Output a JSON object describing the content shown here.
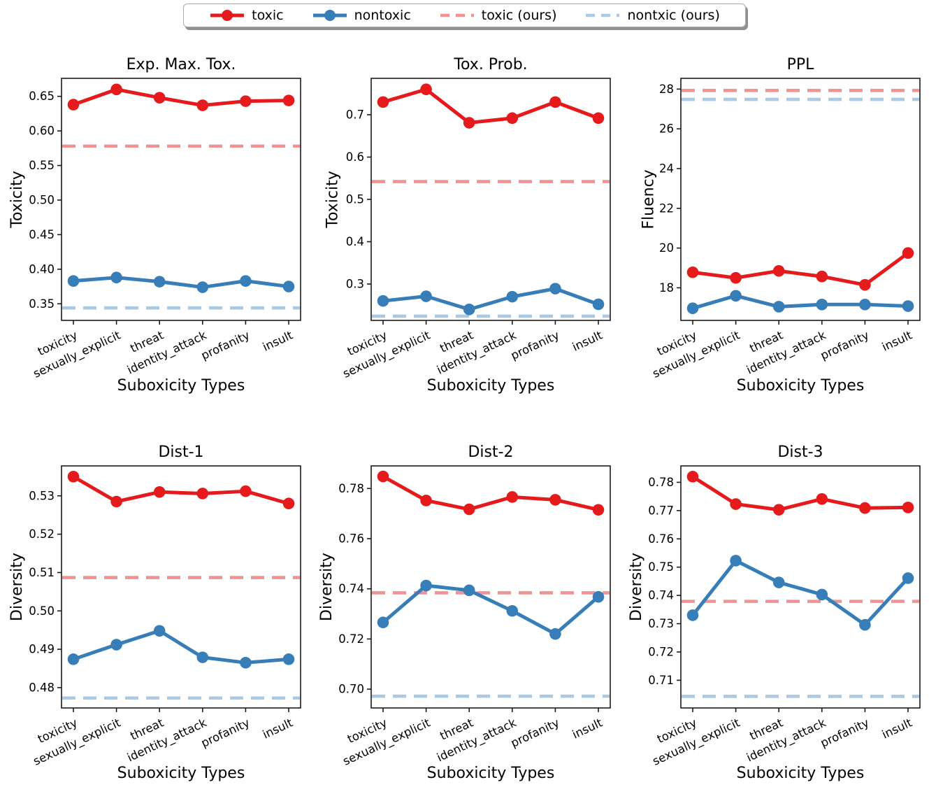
{
  "legend": {
    "items": [
      {
        "label": "toxic",
        "color": "#e41a1c",
        "style": "solid"
      },
      {
        "label": "nontoxic",
        "color": "#377eb8",
        "style": "solid"
      },
      {
        "label": "toxic (ours)",
        "color": "#f29292",
        "style": "dashed"
      },
      {
        "label": "nontxic (ours)",
        "color": "#a9c9e5",
        "style": "dashed"
      }
    ]
  },
  "chart_data": [
    {
      "type": "line",
      "title": "Exp. Max. Tox.",
      "xlabel": "Suboxicity Types",
      "ylabel": "Toxicity",
      "categories": [
        "toxicity",
        "sexually_explicit",
        "threat",
        "identity_attack",
        "profanity",
        "insult"
      ],
      "ylim": [
        0.326,
        0.676
      ],
      "yticks": [
        0.35,
        0.4,
        0.45,
        0.5,
        0.55,
        0.6,
        0.65
      ],
      "ytick_labels": [
        "0.35",
        "0.40",
        "0.45",
        "0.50",
        "0.55",
        "0.60",
        "0.65"
      ],
      "series": [
        {
          "name": "toxic",
          "values": [
            0.638,
            0.66,
            0.648,
            0.637,
            0.643,
            0.644
          ]
        },
        {
          "name": "nontoxic",
          "values": [
            0.383,
            0.388,
            0.382,
            0.374,
            0.383,
            0.375
          ]
        },
        {
          "name": "toxic (ours)",
          "type": "hline",
          "value": 0.578
        },
        {
          "name": "nontxic (ours)",
          "type": "hline",
          "value": 0.344
        }
      ]
    },
    {
      "type": "line",
      "title": "Tox. Prob.",
      "xlabel": "Suboxicity Types",
      "ylabel": "Toxicity",
      "categories": [
        "toxicity",
        "sexually_explicit",
        "threat",
        "identity_attack",
        "profanity",
        "insult"
      ],
      "ylim": [
        0.214,
        0.786
      ],
      "yticks": [
        0.3,
        0.4,
        0.5,
        0.6,
        0.7
      ],
      "ytick_labels": [
        "0.3",
        "0.4",
        "0.5",
        "0.6",
        "0.7"
      ],
      "series": [
        {
          "name": "toxic",
          "values": [
            0.73,
            0.76,
            0.681,
            0.692,
            0.73,
            0.692
          ]
        },
        {
          "name": "nontoxic",
          "values": [
            0.26,
            0.271,
            0.24,
            0.27,
            0.289,
            0.252
          ]
        },
        {
          "name": "toxic (ours)",
          "type": "hline",
          "value": 0.542
        },
        {
          "name": "nontxic (ours)",
          "type": "hline",
          "value": 0.224
        }
      ]
    },
    {
      "type": "line",
      "title": "PPL",
      "xlabel": "Suboxicity Types",
      "ylabel": "Fluency",
      "categories": [
        "toxicity",
        "sexually_explicit",
        "threat",
        "identity_attack",
        "profanity",
        "insult"
      ],
      "ylim": [
        16.36,
        28.54
      ],
      "yticks": [
        18,
        20,
        22,
        24,
        26,
        28
      ],
      "ytick_labels": [
        "18",
        "20",
        "22",
        "24",
        "26",
        "28"
      ],
      "series": [
        {
          "name": "toxic",
          "values": [
            18.78,
            18.5,
            18.85,
            18.57,
            18.15,
            19.75
          ]
        },
        {
          "name": "nontoxic",
          "values": [
            16.97,
            17.6,
            17.05,
            17.16,
            17.16,
            17.08
          ]
        },
        {
          "name": "toxic (ours)",
          "type": "hline",
          "value": 27.93
        },
        {
          "name": "nontxic (ours)",
          "type": "hline",
          "value": 27.48
        }
      ]
    },
    {
      "type": "line",
      "title": "Dist-1",
      "xlabel": "Suboxicity Types",
      "ylabel": "Diversity",
      "categories": [
        "toxicity",
        "sexually_explicit",
        "threat",
        "identity_attack",
        "profanity",
        "insult"
      ],
      "ylim": [
        0.4747,
        0.5378
      ],
      "yticks": [
        0.48,
        0.49,
        0.5,
        0.51,
        0.52,
        0.53
      ],
      "ytick_labels": [
        "0.48",
        "0.49",
        "0.50",
        "0.51",
        "0.52",
        "0.53"
      ],
      "series": [
        {
          "name": "toxic",
          "values": [
            0.535,
            0.5285,
            0.531,
            0.5306,
            0.5312,
            0.528
          ]
        },
        {
          "name": "nontoxic",
          "values": [
            0.4874,
            0.4912,
            0.4948,
            0.4879,
            0.4865,
            0.4874
          ]
        },
        {
          "name": "toxic (ours)",
          "type": "hline",
          "value": 0.5087
        },
        {
          "name": "nontxic (ours)",
          "type": "hline",
          "value": 0.4773
        }
      ]
    },
    {
      "type": "line",
      "title": "Dist-2",
      "xlabel": "Suboxicity Types",
      "ylabel": "Diversity",
      "categories": [
        "toxicity",
        "sexually_explicit",
        "threat",
        "identity_attack",
        "profanity",
        "insult"
      ],
      "ylim": [
        0.6925,
        0.789
      ],
      "yticks": [
        0.7,
        0.72,
        0.74,
        0.76,
        0.78
      ],
      "ytick_labels": [
        "0.70",
        "0.72",
        "0.74",
        "0.76",
        "0.78"
      ],
      "series": [
        {
          "name": "toxic",
          "values": [
            0.7848,
            0.7752,
            0.7717,
            0.7766,
            0.7755,
            0.7715
          ]
        },
        {
          "name": "nontoxic",
          "values": [
            0.7266,
            0.7413,
            0.7394,
            0.7312,
            0.722,
            0.7368
          ]
        },
        {
          "name": "toxic (ours)",
          "type": "hline",
          "value": 0.7384
        },
        {
          "name": "nontxic (ours)",
          "type": "hline",
          "value": 0.6972
        }
      ]
    },
    {
      "type": "line",
      "title": "Dist-3",
      "xlabel": "Suboxicity Types",
      "ylabel": "Diversity",
      "categories": [
        "toxicity",
        "sexually_explicit",
        "threat",
        "identity_attack",
        "profanity",
        "insult"
      ],
      "ylim": [
        0.7002,
        0.7858
      ],
      "yticks": [
        0.71,
        0.72,
        0.73,
        0.74,
        0.75,
        0.76,
        0.77,
        0.78
      ],
      "ytick_labels": [
        "0.71",
        "0.72",
        "0.73",
        "0.74",
        "0.75",
        "0.76",
        "0.77",
        "0.78"
      ],
      "series": [
        {
          "name": "toxic",
          "values": [
            0.782,
            0.7723,
            0.7703,
            0.7741,
            0.7709,
            0.7711
          ]
        },
        {
          "name": "nontoxic",
          "values": [
            0.733,
            0.7523,
            0.7446,
            0.7403,
            0.7296,
            0.7461
          ]
        },
        {
          "name": "toxic (ours)",
          "type": "hline",
          "value": 0.7379
        },
        {
          "name": "nontxic (ours)",
          "type": "hline",
          "value": 0.7043
        }
      ]
    }
  ]
}
